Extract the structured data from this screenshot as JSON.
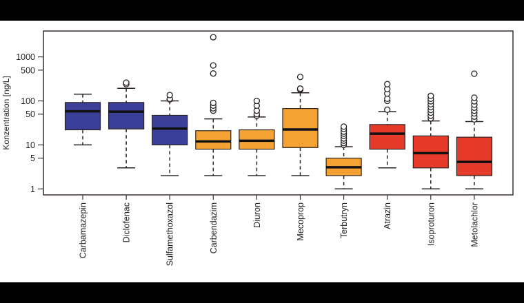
{
  "chart_data": {
    "type": "boxplot",
    "ylabel": "Konzentration [ng/L]",
    "xlabel": "",
    "yscale": "log",
    "ylim": [
      0.85,
      3500
    ],
    "yticks": [
      1,
      5,
      10,
      50,
      100,
      500,
      1000
    ],
    "ytick_labels": [
      "1",
      "5",
      "10",
      "50",
      "100",
      "500",
      "1000"
    ],
    "grid": false,
    "colors": {
      "blue": "#3b3f98",
      "orange": "#f5a234",
      "red": "#e63a2b"
    },
    "categories": [
      "Carbamazepin",
      "Diclofenac",
      "Sulfamethoxazol",
      "Carbendazim",
      "Diuron",
      "Mecoprop",
      "Terbutryn",
      "Atrazin",
      "Isoproturon",
      "Metolachlor"
    ],
    "boxes": [
      {
        "name": "Carbamazepin",
        "color": "blue",
        "whisker_low": 10,
        "q1": 22,
        "median": 58,
        "q3": 92,
        "whisker_high": 142,
        "outliers": []
      },
      {
        "name": "Diclofenac",
        "color": "blue",
        "whisker_low": 3,
        "q1": 23,
        "median": 57,
        "q3": 92,
        "whisker_high": 193,
        "outliers": [
          240,
          260
        ]
      },
      {
        "name": "Sulfamethoxazol",
        "color": "blue",
        "whisker_low": 2,
        "q1": 10,
        "median": 23.5,
        "q3": 47,
        "whisker_high": 100,
        "outliers": [
          108,
          112,
          136
        ]
      },
      {
        "name": "Carbendazim",
        "color": "orange",
        "whisker_low": 2,
        "q1": 8,
        "median": 12,
        "q3": 21,
        "whisker_high": 39,
        "outliers": [
          60,
          68,
          78,
          90,
          420,
          640,
          2800
        ]
      },
      {
        "name": "Diuron",
        "color": "orange",
        "whisker_low": 2,
        "q1": 8,
        "median": 12.4,
        "q3": 22,
        "whisker_high": 43,
        "outliers": [
          46,
          50,
          60,
          78,
          100
        ]
      },
      {
        "name": "Mecoprop",
        "color": "orange",
        "whisker_low": 2,
        "q1": 8.7,
        "median": 22.4,
        "q3": 67,
        "whisker_high": 153,
        "outliers": [
          180,
          190,
          350
        ]
      },
      {
        "name": "Terbutryn",
        "color": "orange",
        "whisker_low": 1,
        "q1": 2,
        "median": 3.1,
        "q3": 5,
        "whisker_high": 9.1,
        "outliers": [
          10,
          11,
          12.5,
          14,
          16,
          18,
          20,
          23,
          26
        ]
      },
      {
        "name": "Atrazin",
        "color": "red",
        "whisker_low": 3,
        "q1": 8,
        "median": 18,
        "q3": 29,
        "whisker_high": 57,
        "outliers": [
          63,
          100,
          112,
          147,
          186,
          240
        ]
      },
      {
        "name": "Isoproturon",
        "color": "red",
        "whisker_low": 1,
        "q1": 3,
        "median": 6.5,
        "q3": 16,
        "whisker_high": 35,
        "outliers": [
          40,
          46,
          54,
          62,
          72,
          84,
          98,
          112,
          130
        ]
      },
      {
        "name": "Metolachlor",
        "color": "red",
        "whisker_low": 1,
        "q1": 2,
        "median": 4.1,
        "q3": 15,
        "whisker_high": 34,
        "outliers": [
          38,
          44,
          52,
          60,
          70,
          82,
          98,
          118,
          415
        ]
      }
    ]
  }
}
